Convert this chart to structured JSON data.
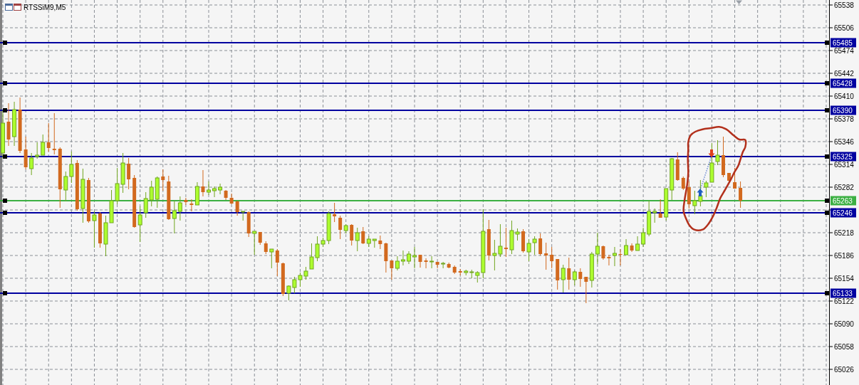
{
  "chart_data": {
    "type": "candlestick",
    "title": "RTSSiM9,M5",
    "categories": [
      null,
      null,
      null,
      null,
      null,
      null,
      null,
      null,
      null,
      null,
      null,
      null,
      null,
      null,
      null,
      null,
      null,
      null,
      null,
      null,
      null,
      null,
      null,
      null,
      null,
      null,
      null,
      null,
      null,
      null,
      null,
      null,
      null,
      null,
      null,
      null,
      null,
      null,
      null,
      null,
      null,
      null,
      null,
      null,
      null,
      null,
      null,
      null,
      null,
      null,
      null,
      null,
      null,
      null,
      null,
      null,
      null,
      null,
      null,
      null,
      null,
      null,
      null,
      null,
      null,
      null,
      null,
      null,
      null,
      null,
      null,
      null,
      null,
      null,
      null,
      null,
      null,
      null,
      null,
      null,
      null,
      null,
      null,
      null,
      null,
      null,
      null,
      null,
      null,
      null,
      null,
      null,
      null,
      null,
      null,
      null,
      null,
      null,
      null,
      null,
      null,
      null,
      null,
      null,
      null,
      null,
      null,
      null,
      null,
      null,
      null,
      null,
      null,
      null,
      null,
      null,
      null,
      null,
      null,
      null,
      null,
      null,
      null,
      null,
      null,
      null,
      null,
      null,
      null,
      null,
      null,
      null,
      null,
      null,
      null,
      null,
      null,
      null,
      null,
      null,
      null,
      null,
      null,
      null,
      null
    ],
    "ohlc": [
      [
        65330,
        65390,
        65322,
        65372
      ],
      [
        65374,
        65400,
        65340,
        65349
      ],
      [
        65353,
        65402,
        65340,
        65391
      ],
      [
        65391,
        65408,
        65330,
        65333
      ],
      [
        65335,
        65353,
        65307,
        65310
      ],
      [
        65308,
        65330,
        65299,
        65323
      ],
      [
        65325,
        65345,
        65322,
        65327
      ],
      [
        65327,
        65356,
        65327,
        65345
      ],
      [
        65345,
        65372,
        65332,
        65337
      ],
      [
        65336,
        65386,
        65328,
        65334
      ],
      [
        65336,
        65338,
        65253,
        65279
      ],
      [
        65278,
        65304,
        65262,
        65297
      ],
      [
        65297,
        65332,
        65288,
        65314
      ],
      [
        65316,
        65320,
        65249,
        65251
      ],
      [
        65252,
        65308,
        65232,
        65293
      ],
      [
        65292,
        65295,
        65232,
        65234
      ],
      [
        65235,
        65248,
        65197,
        65243
      ],
      [
        65245,
        65247,
        65197,
        65203
      ],
      [
        65202,
        65242,
        65185,
        65232
      ],
      [
        65232,
        65278,
        65232,
        65263
      ],
      [
        65263,
        65309,
        65258,
        65287
      ],
      [
        65286,
        65330,
        65274,
        65316
      ],
      [
        65315,
        65323,
        65279,
        65293
      ],
      [
        65295,
        65299,
        65225,
        65226
      ],
      [
        65229,
        65255,
        65205,
        65243
      ],
      [
        65246,
        65275,
        65239,
        65266
      ],
      [
        65264,
        65291,
        65255,
        65282
      ],
      [
        65265,
        65297,
        65253,
        65295
      ],
      [
        65297,
        65307,
        65277,
        65292
      ],
      [
        65290,
        65298,
        65236,
        65237
      ],
      [
        65238,
        65263,
        65217,
        65249
      ],
      [
        65248,
        65269,
        65235,
        65260
      ],
      [
        65264,
        65267,
        65257,
        65261
      ],
      [
        65259,
        65265,
        65248,
        65257
      ],
      [
        65257,
        65289,
        65257,
        65283
      ],
      [
        65283,
        65306,
        65269,
        65275
      ],
      [
        65275,
        65290,
        65271,
        65278
      ],
      [
        65277,
        65283,
        65268,
        65280
      ],
      [
        65278,
        65287,
        65272,
        65282
      ],
      [
        65277,
        65278,
        65264,
        65267
      ],
      [
        65267,
        65273,
        65258,
        65259
      ],
      [
        65262,
        65263,
        65242,
        65247
      ],
      [
        65247,
        65248,
        65235,
        65248
      ],
      [
        65247,
        65248,
        65212,
        65217
      ],
      [
        65217,
        65220,
        65187,
        65220
      ],
      [
        65219,
        65219,
        65201,
        65204
      ],
      [
        65203,
        65206,
        65188,
        65191
      ],
      [
        65191,
        65195,
        65168,
        65195
      ],
      [
        65193,
        65195,
        65157,
        65176
      ],
      [
        65175,
        65176,
        65129,
        65132
      ],
      [
        65133,
        65144,
        65123,
        65143
      ],
      [
        65141,
        65156,
        65133,
        65152
      ],
      [
        65152,
        65162,
        65142,
        65158
      ],
      [
        65157,
        65170,
        65152,
        65164
      ],
      [
        65167,
        65203,
        65167,
        65184
      ],
      [
        65183,
        65213,
        65178,
        65202
      ],
      [
        65202,
        65211,
        65198,
        65207
      ],
      [
        65207,
        65248,
        65202,
        65245
      ],
      [
        65244,
        65260,
        65233,
        65241
      ],
      [
        65239,
        65242,
        65209,
        65222
      ],
      [
        65221,
        65230,
        65217,
        65228
      ],
      [
        65229,
        65230,
        65200,
        65207
      ],
      [
        65207,
        65225,
        65192,
        65218
      ],
      [
        65220,
        65226,
        65202,
        65203
      ],
      [
        65203,
        65213,
        65198,
        65209
      ],
      [
        65207,
        65209,
        65197,
        65209
      ],
      [
        65207,
        65214,
        65195,
        65202
      ],
      [
        65203,
        65204,
        65162,
        65178
      ],
      [
        65179,
        65179,
        65152,
        65168
      ],
      [
        65168,
        65185,
        65165,
        65178
      ],
      [
        65178,
        65193,
        65172,
        65180
      ],
      [
        65178,
        65192,
        65174,
        65188
      ],
      [
        65184,
        65198,
        65168,
        65186
      ],
      [
        65187,
        65187,
        65169,
        65177
      ],
      [
        65179,
        65182,
        65168,
        65177
      ],
      [
        65177,
        65185,
        65168,
        65178
      ],
      [
        65177,
        65177,
        65168,
        65173
      ],
      [
        65174,
        65177,
        65168,
        65175
      ],
      [
        65174,
        65176,
        65168,
        65169
      ],
      [
        65170,
        65172,
        65160,
        65162
      ],
      [
        65164,
        65167,
        65158,
        65162
      ],
      [
        65162,
        65166,
        65158,
        65164
      ],
      [
        65162,
        65166,
        65154,
        65163
      ],
      [
        65158,
        65164,
        65148,
        65162
      ],
      [
        65162,
        65251,
        65154,
        65220
      ],
      [
        65223,
        65236,
        65179,
        65186
      ],
      [
        65186,
        65208,
        65165,
        65189
      ],
      [
        65188,
        65230,
        65184,
        65199
      ],
      [
        65197,
        65225,
        65184,
        65195
      ],
      [
        65194,
        65235,
        65188,
        65221
      ],
      [
        65216,
        65224,
        65207,
        65219
      ],
      [
        65220,
        65223,
        65190,
        65192
      ],
      [
        65191,
        65209,
        65178,
        65203
      ],
      [
        65204,
        65213,
        65187,
        65209
      ],
      [
        65210,
        65217,
        65186,
        65188
      ],
      [
        65189,
        65204,
        65166,
        65186
      ],
      [
        65187,
        65198,
        65168,
        65178
      ],
      [
        65181,
        65181,
        65138,
        65151
      ],
      [
        65152,
        65173,
        65134,
        65168
      ],
      [
        65168,
        65183,
        65138,
        65152
      ],
      [
        65152,
        65165,
        65144,
        65163
      ],
      [
        65163,
        65168,
        65142,
        65153
      ],
      [
        65156,
        65156,
        65119,
        65149
      ],
      [
        65151,
        65191,
        65141,
        65188
      ],
      [
        65188,
        65218,
        65174,
        65199
      ],
      [
        65199,
        65200,
        65180,
        65182
      ],
      [
        65184,
        65187,
        65172,
        65182
      ],
      [
        65186,
        65198,
        65171,
        65189
      ],
      [
        65188,
        65195,
        65172,
        65187
      ],
      [
        65187,
        65209,
        65187,
        65200
      ],
      [
        65200,
        65203,
        65191,
        65193
      ],
      [
        65193,
        65213,
        65193,
        65202
      ],
      [
        65202,
        65225,
        65198,
        65218
      ],
      [
        65216,
        65263,
        65213,
        65248
      ],
      [
        65246,
        65252,
        65232,
        65248
      ],
      [
        65245,
        65265,
        65239,
        65239
      ],
      [
        65240,
        65280,
        65235,
        65280
      ],
      [
        65278,
        65323,
        65264,
        65322
      ],
      [
        65321,
        65331,
        65291,
        65292
      ],
      [
        65295,
        65297,
        65278,
        65280
      ],
      [
        65282,
        65290,
        65252,
        65258
      ],
      [
        65256,
        65277,
        65244,
        65263
      ],
      [
        65262,
        65292,
        65255,
        65270
      ],
      [
        65282,
        65291,
        65268,
        65288
      ],
      [
        65289,
        65344,
        65289,
        65316
      ],
      [
        65318,
        65348,
        65313,
        65327
      ],
      [
        65327,
        65353,
        65296,
        65299
      ],
      [
        65302,
        65302,
        65290,
        65291
      ],
      [
        65289,
        65309,
        65280,
        65280
      ],
      [
        65281,
        65290,
        65253,
        65263
      ],
      null,
      null,
      null,
      null,
      null,
      null,
      null,
      null,
      null,
      null,
      null,
      null,
      null,
      null,
      null
    ],
    "colors": [
      "#adff2f",
      "#d2691e",
      "#adff2f",
      "#d2691e",
      "#d2691e",
      "#adff2f",
      "#adff2f",
      "#adff2f",
      "#d2691e",
      "#d2691e",
      "#d2691e",
      "#adff2f",
      "#adff2f",
      "#d2691e",
      "#adff2f",
      "#d2691e",
      "#adff2f",
      "#d2691e",
      "#adff2f",
      "#adff2f",
      "#adff2f",
      "#adff2f",
      "#d2691e",
      "#d2691e",
      "#adff2f",
      "#adff2f",
      "#adff2f",
      "#adff2f",
      "#d2691e",
      "#d2691e",
      "#adff2f",
      "#adff2f",
      "#d2691e",
      "#d2691e",
      "#adff2f",
      "#d2691e",
      "#adff2f",
      "#adff2f",
      "#adff2f",
      "#d2691e",
      "#d2691e",
      "#d2691e",
      "#adff2f",
      "#d2691e",
      "#adff2f",
      "#d2691e",
      "#d2691e",
      "#adff2f",
      "#d2691e",
      "#d2691e",
      "#adff2f",
      "#adff2f",
      "#adff2f",
      "#adff2f",
      "#adff2f",
      "#adff2f",
      "#adff2f",
      "#adff2f",
      "#d2691e",
      "#d2691e",
      "#adff2f",
      "#d2691e",
      "#adff2f",
      "#d2691e",
      "#adff2f",
      "#adff2f",
      "#d2691e",
      "#d2691e",
      "#d2691e",
      "#adff2f",
      "#adff2f",
      "#adff2f",
      "#adff2f",
      "#d2691e",
      "#d2691e",
      "#adff2f",
      "#d2691e",
      "#adff2f",
      "#d2691e",
      "#d2691e",
      "#d2691e",
      "#adff2f",
      "#adff2f",
      "#adff2f",
      "#adff2f",
      "#d2691e",
      "#adff2f",
      "#adff2f",
      "#d2691e",
      "#adff2f",
      "#adff2f",
      "#d2691e",
      "#adff2f",
      "#adff2f",
      "#d2691e",
      "#d2691e",
      "#d2691e",
      "#d2691e",
      "#adff2f",
      "#d2691e",
      "#adff2f",
      "#d2691e",
      "#d2691e",
      "#adff2f",
      "#adff2f",
      "#d2691e",
      "#d2691e",
      "#adff2f",
      "#d2691e",
      "#adff2f",
      "#d2691e",
      "#adff2f",
      "#adff2f",
      "#adff2f",
      "#adff2f",
      "#d2691e",
      "#adff2f",
      "#adff2f",
      "#d2691e",
      "#d2691e",
      "#d2691e",
      "#adff2f",
      "#adff2f",
      "#adff2f",
      "#adff2f",
      "#adff2f",
      "#d2691e",
      "#d2691e",
      "#d2691e",
      "#d2691e",
      null,
      null,
      null,
      null,
      null,
      null,
      null,
      null,
      null,
      null,
      null,
      null,
      null,
      null,
      null
    ],
    "ylim": [
      65004,
      65545
    ],
    "yticks": [
      65538,
      65506,
      65474,
      65442,
      65410,
      65378,
      65346,
      65314,
      65282,
      {
        "value": 65250,
        "label": null
      },
      65218,
      65186,
      65154,
      65122,
      65090,
      65058,
      65026
    ],
    "grid": true,
    "tick_labels": "y",
    "ref_lines": [
      {
        "axis": "y",
        "value": 65485,
        "label": "65485",
        "color": "#0000a0"
      },
      {
        "axis": "y",
        "value": 65428,
        "label": "65428",
        "color": "#0000a0"
      },
      {
        "axis": "y",
        "value": 65390,
        "label": "65390",
        "color": "#0000a0"
      },
      {
        "axis": "y",
        "value": 65325,
        "label": "65325",
        "color": "#0000a0"
      },
      {
        "axis": "y",
        "value": 65246,
        "label": "65246",
        "color": "#0000a0"
      },
      {
        "axis": "y",
        "value": 65133,
        "label": "65133",
        "color": "#0000a0"
      },
      {
        "axis": "y",
        "value": 65263,
        "label": "65263",
        "color": "#3cb043"
      }
    ]
  }
}
